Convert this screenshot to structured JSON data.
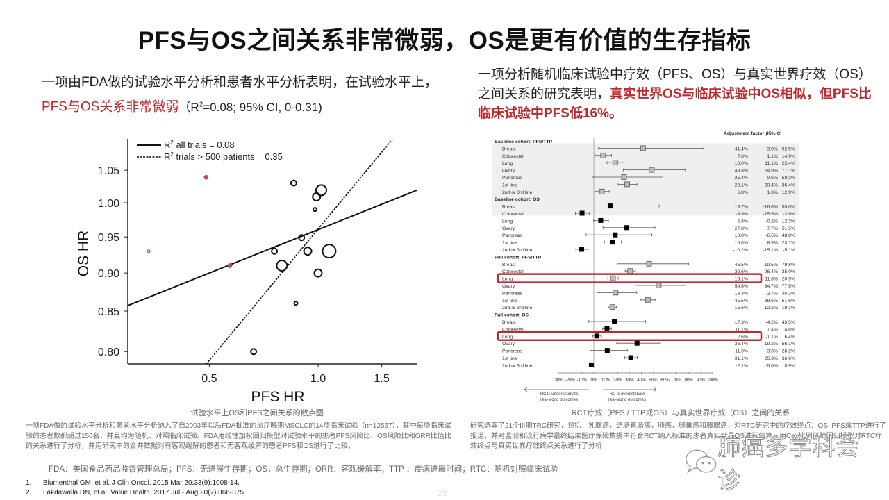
{
  "title": "PFS与OS之间关系非常微弱，OS是更有价值的生存指标",
  "left_lead": {
    "prefix": "一项由FDA做的试验水平分析和患者水平分析表明，在试验水平上，",
    "highlight": "PFS与OS关系非常微弱",
    "suffix_pre": "（R",
    "suffix_sup": "2",
    "suffix_post": "=0.08; 95% CI, 0-0.31)"
  },
  "right_lead": {
    "prefix": "一项分析随机临床试验中疗效（PFS、OS）与真实世界疗效（OS）之间关系的研究表明，",
    "highlight": "真实世界OS与临床试验中OS相似，但PFS比临床试验中PFS低16%。"
  },
  "captions": {
    "left": "试验水平上OS和PFS之间关系的散点图",
    "right": "RCT疗效（PFS / TTP或OS）与真实世界疗效（OS）之间的关系"
  },
  "notes": {
    "left": "一项FDA做的试验水平分析和患者水平分析纳入了自2003年以后FDA批准的治疗晚期MSCLC的14项临床试验（n=12567），其中每项临床试验的患者数都超过150名，并且均为随机、对照临床试验。FDA用线性加权回归模型对试验水平的患者PFS风险比、OS风险比和ORR比值比的关系进行了分析，并用研究中的合并数据对有客观缓解的患者和无客观缓解的患者PFS和OS进行了比较。",
    "right": "研究选取了21个III期TRC研究，包括：乳腺癌，结肠直肠癌，肺癌，卵巢癌和胰腺癌，对RTC研究中的疗效终点：OS, PFS或TTP进行了报道，并对监测和流行病学最终结果医疗保险数据中符合RCT纳入标准的患者真实世界OS进行估算。用Cox比例风险回归模型对RTC疗效终点与真实世界疗效终点关系进行了分析"
  },
  "abbreviations": "FDA：美国食品药品监督管理总局；PFS：无进展生存期；OS，总生存期；ORR：客观缓解率；TTP ：疾病进展时间；RTC：随机对照临床试验",
  "references": [
    {
      "num": "1.",
      "text": "Blumenthal GM, et al. J Clin Oncol. 2015 Mar 20;33(9):1008-14."
    },
    {
      "num": "2.",
      "text": "Lakdawalla DN, et al.  Value Health. 2017 Jul - Aug;20(7):866-875."
    }
  ],
  "page_number": "28",
  "watermark": {
    "icon": "wechat-icon",
    "text": "肺癌多学科会诊"
  },
  "colors": {
    "accent_red": "#c0282d",
    "red_points": "#b5524a",
    "band": "#efefef",
    "box_gray": "#bdbdbd"
  },
  "chart_data": [
    {
      "type": "scatter",
      "xlabel": "PFS HR",
      "ylabel": "OS HR",
      "xscale": "log",
      "yscale": "log",
      "xticks": [
        "0.5",
        "1.0",
        "1.5"
      ],
      "xtick_values": [
        0.5,
        1.0,
        1.5
      ],
      "yticks": [
        "0.80",
        "0.85",
        "0.90",
        "0.95",
        "1.00",
        "1.05"
      ],
      "ytick_values": [
        0.8,
        0.85,
        0.9,
        0.95,
        1.0,
        1.05
      ],
      "xlim": [
        0.3,
        1.88
      ],
      "ylim": [
        0.785,
        1.1
      ],
      "legend_position": "top-left",
      "legend": [
        {
          "style": "solid",
          "label_pre": "R",
          "label_sup": "2",
          "label_post": " all trials = 0.08"
        },
        {
          "style": "dashed",
          "label_pre": "R",
          "label_sup": "2",
          "label_post": " trials > 500 patients = 0.35"
        }
      ],
      "lines": [
        {
          "style": "solid",
          "x": [
            0.297,
            1.875
          ],
          "y": [
            0.857,
            1.019
          ]
        },
        {
          "style": "dashed",
          "x": [
            0.49,
            1.606
          ],
          "y": [
            0.785,
            1.1
          ]
        }
      ],
      "points": [
        {
          "x": 0.34,
          "y": 0.93,
          "size": "tiny",
          "group": "red"
        },
        {
          "x": 0.49,
          "y": 1.039,
          "size": "dot",
          "group": "red"
        },
        {
          "x": 0.57,
          "y": 0.91,
          "size": "dot",
          "group": "red"
        },
        {
          "x": 0.856,
          "y": 1.03,
          "size": "small",
          "group": "black"
        },
        {
          "x": 1.02,
          "y": 1.019,
          "size": "large",
          "group": "black"
        },
        {
          "x": 0.99,
          "y": 1.009,
          "size": "medium",
          "group": "black"
        },
        {
          "x": 0.98,
          "y": 0.99,
          "size": "tiny",
          "group": "black"
        },
        {
          "x": 0.9,
          "y": 0.949,
          "size": "small",
          "group": "black"
        },
        {
          "x": 0.757,
          "y": 0.93,
          "size": "small",
          "group": "black"
        },
        {
          "x": 0.936,
          "y": 0.93,
          "size": "medium",
          "group": "black"
        },
        {
          "x": 1.073,
          "y": 0.93,
          "size": "xlarge",
          "group": "black"
        },
        {
          "x": 0.794,
          "y": 0.91,
          "size": "large",
          "group": "black"
        },
        {
          "x": 1.0,
          "y": 0.9,
          "size": "medium",
          "group": "black"
        },
        {
          "x": 0.868,
          "y": 0.86,
          "size": "tiny",
          "group": "black"
        },
        {
          "x": 0.663,
          "y": 0.8,
          "size": "small",
          "group": "black"
        }
      ]
    },
    {
      "type": "forest",
      "value_header": "Adjustment factor ƒ",
      "ci_header": "95% CI",
      "xlim": [
        -30,
        100
      ],
      "xticks": [
        "-30%",
        "-20%",
        "-10%",
        "0%",
        "10%",
        "20%",
        "30%",
        "40%",
        "50%",
        "60%",
        "70%",
        "80%",
        "90%",
        "100%"
      ],
      "xtick_values": [
        -30,
        -20,
        -10,
        0,
        10,
        20,
        30,
        40,
        50,
        60,
        70,
        80,
        90,
        100
      ],
      "arrow_left": [
        "RCTs underestimate",
        "real-world outcomes"
      ],
      "arrow_right": [
        "RCTs overestimate",
        "real-world outcomes"
      ],
      "sections": [
        {
          "header": "Baseline cohort: PFS/TTP",
          "marker": "gray",
          "shaded": false,
          "rows": [
            {
              "label": "Breast",
              "value": 41.4,
              "value_text": "41.4%",
              "lo": 3.9,
              "lo_text": "3.9%",
              "hi": 92.5,
              "hi_text": "92.5%"
            },
            {
              "label": "Colorectal",
              "value": 7.8,
              "value_text": "7.8%",
              "lo": 1.1,
              "lo_text": "1.1%",
              "hi": 14.9,
              "hi_text": "14.9%"
            },
            {
              "label": "Lung",
              "value": 18.0,
              "value_text": "18.0%",
              "lo": 11.1,
              "lo_text": "11.1%",
              "hi": 25.4,
              "hi_text": "25.4%"
            },
            {
              "label": "Ovary",
              "value": 48.8,
              "value_text": "48.8%",
              "lo": 24.9,
              "lo_text": "24.9%",
              "hi": 77.1,
              "hi_text": "77.1%"
            },
            {
              "label": "Pancreas",
              "value": 25.4,
              "value_text": "25.4%",
              "lo": -0.6,
              "lo_text": "-0.6%",
              "hi": 58.2,
              "hi_text": "58.2%"
            },
            {
              "label": "1st line",
              "value": 28.1,
              "value_text": "28.1%",
              "lo": 20.4,
              "lo_text": "20.4%",
              "hi": 36.4,
              "hi_text": "36.4%"
            },
            {
              "label": "2nd or 3rd line",
              "value": 6.8,
              "value_text": "6.8%",
              "lo": 1.0,
              "lo_text": "1.0%",
              "hi": 12.9,
              "hi_text": "12.9%"
            }
          ]
        },
        {
          "header": "Baseline cohort: OS",
          "marker": "black",
          "shaded": true,
          "rows": [
            {
              "label": "Breast",
              "value": 13.7,
              "value_text": "13.7%",
              "lo": -16.6,
              "lo_text": "-16.6%",
              "hi": 55.0,
              "hi_text": "55.0%"
            },
            {
              "label": "Colorectal",
              "value": -9.9,
              "value_text": "-9.9%",
              "lo": -15.5,
              "lo_text": "-15.5%",
              "hi": -3.9,
              "hi_text": "-3.9%"
            },
            {
              "label": "Lung",
              "value": 5.8,
              "value_text": "5.8%",
              "lo": -0.2,
              "lo_text": "-0.2%",
              "hi": 12.3,
              "hi_text": "12.3%"
            },
            {
              "label": "Ovary",
              "value": 27.8,
              "value_text": "27.8%",
              "lo": 7.7,
              "lo_text": "7.7%",
              "hi": 51.5,
              "hi_text": "51.5%"
            },
            {
              "label": "Pancreas",
              "value": 18.0,
              "value_text": "18.0%",
              "lo": -6.5,
              "lo_text": "-6.5%",
              "hi": 48.8,
              "hi_text": "48.8%"
            },
            {
              "label": "1st line",
              "value": 15.8,
              "value_text": "15.8%",
              "lo": 8.9,
              "lo_text": "8.9%",
              "hi": 23.1,
              "hi_text": "23.1%"
            },
            {
              "label": "2nd or 3rd line",
              "value": -10.2,
              "value_text": "-10.2%",
              "lo": -15.1,
              "lo_text": "-15.1%",
              "hi": -5.1,
              "hi_text": "-5.1%"
            }
          ]
        },
        {
          "header": "Full cohort: PFS/TTP",
          "marker": "gray",
          "shaded": false,
          "rows": [
            {
              "label": "Breast",
              "value": 46.5,
              "value_text": "46.5%",
              "lo": 19.5,
              "lo_text": "19.5%",
              "hi": 79.8,
              "hi_text": "79.8%"
            },
            {
              "label": "Colorectal",
              "value": 30.6,
              "value_text": "30.6%",
              "lo": 26.4,
              "lo_text": "26.4%",
              "hi": 35.0,
              "hi_text": "35.0%"
            },
            {
              "label": "Lung",
              "value": 16.1,
              "value_text": "16.1%",
              "lo": 11.8,
              "lo_text": "11.8%",
              "hi": 20.5,
              "hi_text": "20.5%",
              "highlighted": true
            },
            {
              "label": "Ovary",
              "value": 54.6,
              "value_text": "54.6%",
              "lo": 34.7,
              "lo_text": "34.7%",
              "hi": 77.5,
              "hi_text": "77.5%"
            },
            {
              "label": "Pancreas",
              "value": 18.3,
              "value_text": "18.3%",
              "lo": 2.7,
              "lo_text": "2.7%",
              "hi": 36.2,
              "hi_text": "36.2%"
            },
            {
              "label": "1st line",
              "value": 45.5,
              "value_text": "45.5%",
              "lo": 39.6,
              "lo_text": "39.6%",
              "hi": 51.6,
              "hi_text": "51.6%"
            },
            {
              "label": "2nd or 3rd line",
              "value": 15.6,
              "value_text": "15.6%",
              "lo": 12.2,
              "lo_text": "12.2%",
              "hi": 19.1,
              "hi_text": "19.1%"
            }
          ]
        },
        {
          "header": "Full cohort: OS",
          "marker": "black",
          "shaded": true,
          "rows": [
            {
              "label": "Breast",
              "value": 17.3,
              "value_text": "17.3%",
              "lo": -4.2,
              "lo_text": "-4.2%",
              "hi": 43.5,
              "hi_text": "43.5%"
            },
            {
              "label": "Colorectal",
              "value": 11.1,
              "value_text": "11.1%",
              "lo": 7.4,
              "lo_text": "7.4%",
              "hi": 14.8,
              "hi_text": "14.8%"
            },
            {
              "label": "Lung",
              "value": 2.6,
              "value_text": "2.6%",
              "lo": -1.1,
              "lo_text": "-1.1%",
              "hi": 6.4,
              "hi_text": "6.4%",
              "highlighted": true
            },
            {
              "label": "Ovary",
              "value": 36.4,
              "value_text": "36.4%",
              "lo": 19.2,
              "lo_text": "19.2%",
              "hi": 56.1,
              "hi_text": "56.1%"
            },
            {
              "label": "Pancreas",
              "value": 11.3,
              "value_text": "11.3%",
              "lo": -3.3,
              "lo_text": "-3.3%",
              "hi": 28.2,
              "hi_text": "28.2%"
            },
            {
              "label": "1st line",
              "value": 31.1,
              "value_text": "31.1%",
              "lo": 25.9,
              "lo_text": "25.9%",
              "hi": 36.6,
              "hi_text": "36.6%"
            },
            {
              "label": "2nd or 3rd line",
              "value": -2.1,
              "value_text": "-2.1%",
              "lo": -5.0,
              "lo_text": "-5.0%",
              "hi": 0.9,
              "hi_text": "0.9%"
            }
          ]
        }
      ]
    }
  ]
}
